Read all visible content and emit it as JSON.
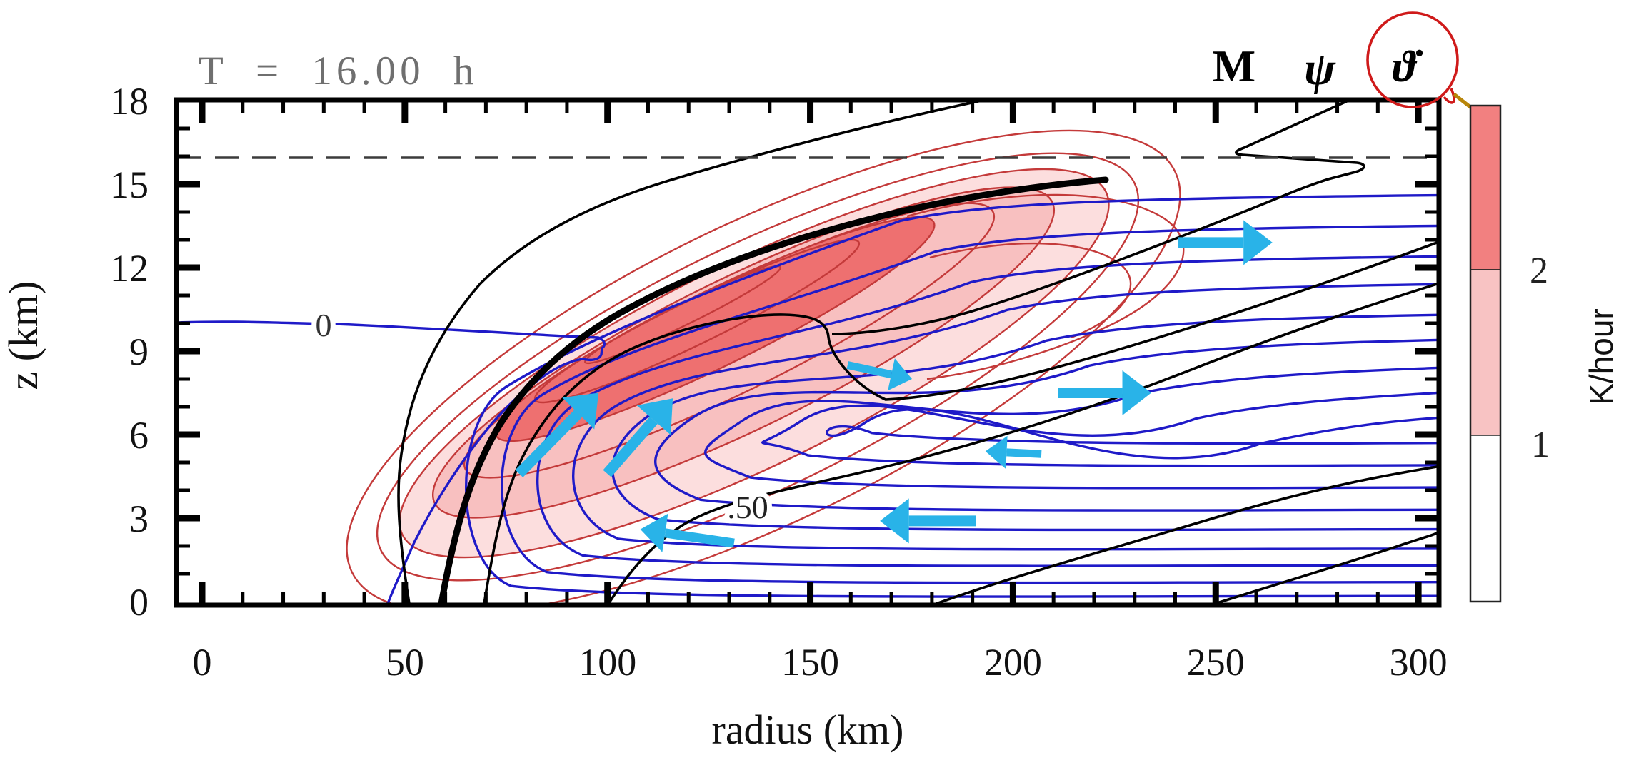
{
  "title": "T = 16.00 h",
  "legend": {
    "items": [
      {
        "symbol": "M",
        "field": "absolute-angular-momentum",
        "line_color": "#1f1ac8"
      },
      {
        "symbol": "ψ",
        "field": "streamfunction",
        "line_color": "#000000"
      },
      {
        "symbol": "ϑ̇",
        "field": "diabatic-heating-rate",
        "line_color": "#c83232",
        "highlighted": true
      }
    ],
    "highlight_circle_color": "#cf1a1a",
    "callout_arrow_color": "#b8860b"
  },
  "colorbar": {
    "units": "K/hour",
    "tick_labels": [
      "2",
      "1"
    ],
    "segments": [
      {
        "range": "> 2 K/hour",
        "color": "#f28080"
      },
      {
        "range": "1–2 K/hour",
        "color": "#f8c3c3"
      },
      {
        "range": "< 1 K/hour",
        "color": "#ffffff"
      }
    ]
  },
  "chart_data": {
    "type": "contour",
    "title": "T = 16.00 h",
    "xlabel": "radius (km)",
    "ylabel": "z (km)",
    "xlim": [
      0,
      300
    ],
    "ylim": [
      0,
      18
    ],
    "x_major_ticks": [
      0,
      50,
      100,
      150,
      200,
      250,
      300
    ],
    "x_minor_step_km": 10,
    "y_major_ticks": [
      0,
      3,
      6,
      9,
      12,
      15,
      18
    ],
    "y_minor_step_km": 1,
    "grid": false,
    "dashed_reference_line_z_km": 16,
    "fields": [
      {
        "name": "M (absolute angular momentum)",
        "style": "thin blue contours, quasi-horizontal at large radius, drawn upward/inward along the convective band",
        "right_edge_heights_z_km": [
          14.6,
          13.5,
          12.4,
          11.4,
          10.3,
          9.4,
          8.4,
          7.5,
          6.6,
          5.7,
          4.9,
          4.1,
          3.3,
          2.6,
          1.9,
          1.3,
          0.7,
          0.2
        ]
      },
      {
        "name": "psi (streamfunction)",
        "style": "thin black contours",
        "labeled_level": ".50"
      },
      {
        "name": "theta-dot (diabatic heating rate)",
        "style": "red contour lines with filled bands, K/hour",
        "contour_levels_K_per_hour": [
          0.5,
          1,
          1.5,
          2,
          2.5,
          3
        ],
        "fill_thresholds_K_per_hour": [
          1,
          2
        ]
      },
      {
        "name": "M highlighted surface",
        "style": "very thick black curve along the convective band"
      }
    ],
    "contour_labels": [
      {
        "text": "0",
        "field": "M",
        "x_km": 30,
        "z_km": 10.0
      },
      {
        "text": ".50",
        "field": "psi",
        "x_km": 134,
        "z_km": 3.4
      }
    ],
    "flow_arrows_color": "#29b3e8",
    "flow_arrows": [
      {
        "from_km": [
          78.2,
          4.6
        ],
        "to_km": [
          97.8,
          7.5
        ],
        "size": "large",
        "direction": "up-outward along band"
      },
      {
        "from_km": [
          99.9,
          4.6
        ],
        "to_km": [
          116.1,
          7.3
        ],
        "size": "large",
        "direction": "up-outward along band"
      },
      {
        "from_km": [
          131.2,
          2.1
        ],
        "to_km": [
          108.1,
          2.6
        ],
        "size": "medium",
        "direction": "inflow (leftward)"
      },
      {
        "from_km": [
          190.9,
          2.9
        ],
        "to_km": [
          167.2,
          2.9
        ],
        "size": "large",
        "direction": "inflow (leftward)"
      },
      {
        "from_km": [
          207.0,
          5.3
        ],
        "to_km": [
          193.2,
          5.4
        ],
        "size": "small",
        "direction": "inflow (leftward)"
      },
      {
        "from_km": [
          159.2,
          8.5
        ],
        "to_km": [
          175.1,
          8.0
        ],
        "size": "small",
        "direction": "outflow (rightward)"
      },
      {
        "from_km": [
          211.2,
          7.5
        ],
        "to_km": [
          234.1,
          7.5
        ],
        "size": "large",
        "direction": "outflow (rightward)"
      },
      {
        "from_km": [
          240.8,
          12.9
        ],
        "to_km": [
          264.0,
          12.9
        ],
        "size": "large",
        "direction": "outflow (rightward)"
      }
    ]
  }
}
